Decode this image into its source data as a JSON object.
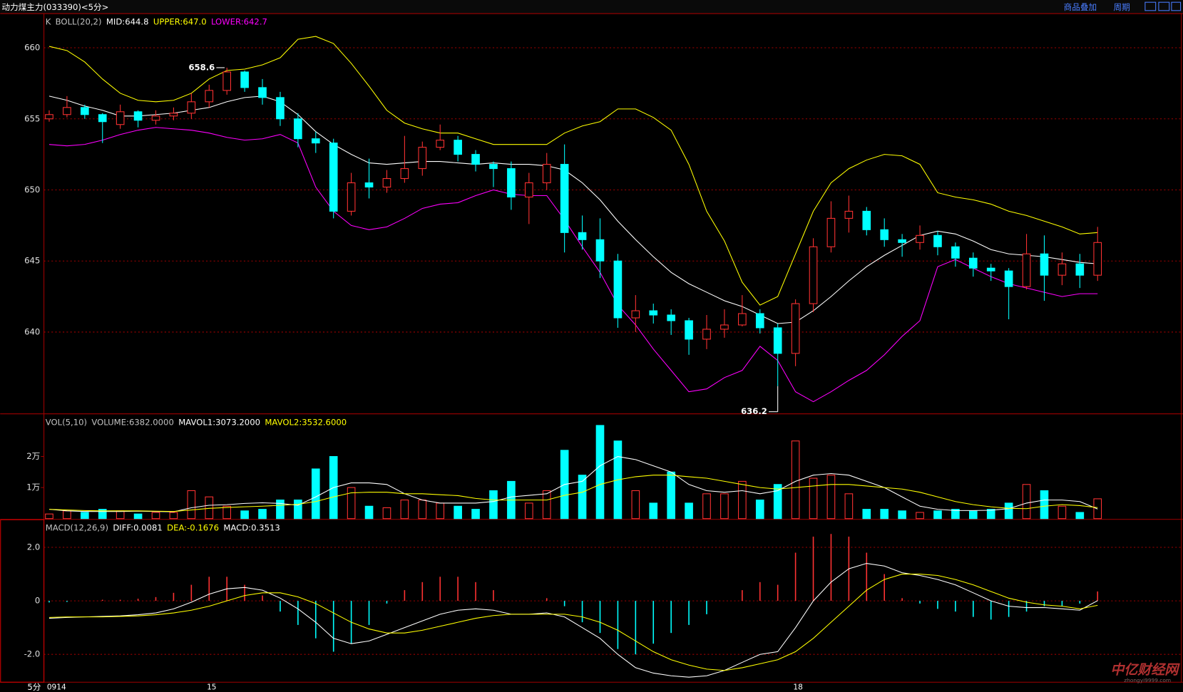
{
  "header": {
    "title": "动力煤主力(033390)<5分>",
    "buttons": [
      "商品叠加",
      "周期"
    ]
  },
  "period_label": "5分",
  "watermark": {
    "brand": "中亿财经网",
    "url": "zhongyi9999.com"
  },
  "chart_data": [
    {
      "type": "candlestick",
      "legend": [
        {
          "text": "K",
          "color": "#c0c0c0"
        },
        {
          "text": "BOLL(20,2)",
          "color": "#c0c0c0"
        },
        {
          "text": "MID:644.8",
          "color": "#ffffff"
        },
        {
          "text": "UPPER:647.0",
          "color": "#ffff00"
        },
        {
          "text": "LOWER:642.7",
          "color": "#ff00ff"
        }
      ],
      "ylim": [
        634.3,
        662.3
      ],
      "yticks": [
        640,
        645,
        650,
        655,
        660
      ],
      "grid": true,
      "up_color": "#ff3232",
      "down_color": "#00ffff",
      "ohlc": [
        [
          655.0,
          655.6,
          654.8,
          655.3
        ],
        [
          655.3,
          656.6,
          655.1,
          655.8
        ],
        [
          655.8,
          656.0,
          655.0,
          655.3
        ],
        [
          655.3,
          655.4,
          653.3,
          654.8
        ],
        [
          654.6,
          656.0,
          654.3,
          655.5
        ],
        [
          655.5,
          655.6,
          654.4,
          654.9
        ],
        [
          654.9,
          655.6,
          654.6,
          655.2
        ],
        [
          655.2,
          655.8,
          654.9,
          655.4
        ],
        [
          655.4,
          656.8,
          655.0,
          656.2
        ],
        [
          656.2,
          657.4,
          655.8,
          657.0
        ],
        [
          657.0,
          658.6,
          656.7,
          658.3
        ],
        [
          658.3,
          658.4,
          656.9,
          657.2
        ],
        [
          657.2,
          657.8,
          656.0,
          656.5
        ],
        [
          656.5,
          656.9,
          654.5,
          655.0
        ],
        [
          655.0,
          655.4,
          653.0,
          653.6
        ],
        [
          653.6,
          654.1,
          652.6,
          653.3
        ],
        [
          653.3,
          653.6,
          648.0,
          648.5
        ],
        [
          648.5,
          651.2,
          648.2,
          650.5
        ],
        [
          650.5,
          652.2,
          649.4,
          650.2
        ],
        [
          650.2,
          651.4,
          649.8,
          650.8
        ],
        [
          650.8,
          653.8,
          650.5,
          651.5
        ],
        [
          651.5,
          653.4,
          651.0,
          653.0
        ],
        [
          653.0,
          654.6,
          652.8,
          653.5
        ],
        [
          653.5,
          653.8,
          652.0,
          652.5
        ],
        [
          652.5,
          652.8,
          651.3,
          651.8
        ],
        [
          651.8,
          652.0,
          650.2,
          651.5
        ],
        [
          651.5,
          652.0,
          648.6,
          649.5
        ],
        [
          649.5,
          651.2,
          647.6,
          650.5
        ],
        [
          650.5,
          652.6,
          650.0,
          651.8
        ],
        [
          651.8,
          653.2,
          645.6,
          647.0
        ],
        [
          647.0,
          648.2,
          645.8,
          646.5
        ],
        [
          646.5,
          648.0,
          643.8,
          645.0
        ],
        [
          645.0,
          645.5,
          640.3,
          641.0
        ],
        [
          641.0,
          642.6,
          640.0,
          641.5
        ],
        [
          641.5,
          642.0,
          640.6,
          641.2
        ],
        [
          641.2,
          641.6,
          639.8,
          640.8
        ],
        [
          640.8,
          641.0,
          638.4,
          639.5
        ],
        [
          639.5,
          641.2,
          638.8,
          640.2
        ],
        [
          640.2,
          641.6,
          639.6,
          640.5
        ],
        [
          640.5,
          642.6,
          640.4,
          641.3
        ],
        [
          641.3,
          641.6,
          639.9,
          640.3
        ],
        [
          640.3,
          640.6,
          636.2,
          638.5
        ],
        [
          638.5,
          642.3,
          637.6,
          642.0
        ],
        [
          642.0,
          646.6,
          641.4,
          646.0
        ],
        [
          646.0,
          649.2,
          645.6,
          648.0
        ],
        [
          648.0,
          649.6,
          647.0,
          648.5
        ],
        [
          648.5,
          648.8,
          646.8,
          647.2
        ],
        [
          647.2,
          648.0,
          646.0,
          646.5
        ],
        [
          646.5,
          646.9,
          645.3,
          646.3
        ],
        [
          646.3,
          647.5,
          645.8,
          646.8
        ],
        [
          646.8,
          647.1,
          645.4,
          646.0
        ],
        [
          646.0,
          646.3,
          644.6,
          645.2
        ],
        [
          645.2,
          645.6,
          643.9,
          644.5
        ],
        [
          644.5,
          644.8,
          643.6,
          644.3
        ],
        [
          644.3,
          644.5,
          640.9,
          643.2
        ],
        [
          643.2,
          646.9,
          643.0,
          645.5
        ],
        [
          645.5,
          646.8,
          642.2,
          644.0
        ],
        [
          644.0,
          645.6,
          643.3,
          644.8
        ],
        [
          644.8,
          645.5,
          643.1,
          644.0
        ],
        [
          644.0,
          647.4,
          643.6,
          646.3
        ]
      ],
      "lines": [
        {
          "color": "#ffff00",
          "values": [
            660.1,
            659.8,
            659,
            657.8,
            656.8,
            656.3,
            656.2,
            656.3,
            656.8,
            657.8,
            658.4,
            658.5,
            658.8,
            659.3,
            660.6,
            660.8,
            660.3,
            658.9,
            657.3,
            655.6,
            654.7,
            654.3,
            654,
            654,
            653.6,
            653.2,
            653.2,
            653.2,
            653.2,
            654,
            654.5,
            654.8,
            655.7,
            655.7,
            655.1,
            654.2,
            651.8,
            648.5,
            646.4,
            643.5,
            641.9,
            642.5,
            645.5,
            648.5,
            650.5,
            651.5,
            652.1,
            652.5,
            652.4,
            651.8,
            649.8,
            649.5,
            649.3,
            649,
            648.5,
            648.2,
            647.8,
            647.4,
            646.9,
            647.0
          ]
        },
        {
          "color": "#ffffff",
          "values": [
            656.6,
            656.3,
            655.9,
            655.6,
            655.2,
            655.2,
            655.3,
            655.4,
            655.6,
            655.8,
            656.2,
            656.5,
            656.6,
            656.2,
            655.3,
            654.1,
            653.2,
            652.5,
            651.9,
            651.8,
            651.9,
            652.0,
            652.0,
            651.9,
            651.8,
            651.9,
            651.8,
            651.8,
            651.7,
            651.4,
            650.5,
            649.3,
            647.8,
            646.5,
            645.3,
            644.2,
            643.4,
            642.8,
            642.2,
            641.8,
            641.2,
            640.6,
            640.7,
            641.5,
            642.5,
            643.6,
            644.6,
            645.4,
            646.1,
            646.8,
            647.1,
            646.9,
            646.4,
            645.8,
            645.5,
            645.4,
            645.3,
            645.1,
            644.9,
            644.8
          ]
        },
        {
          "color": "#ff00ff",
          "values": [
            653.2,
            653.1,
            653.2,
            653.5,
            653.9,
            654.2,
            654.4,
            654.3,
            654.2,
            654.0,
            653.7,
            653.5,
            653.6,
            653.9,
            653.3,
            650.2,
            648.5,
            647.5,
            647.2,
            647.4,
            648,
            648.7,
            649,
            649.1,
            649.6,
            650.0,
            649.7,
            649.6,
            649.6,
            647.9,
            646,
            644.2,
            641.9,
            640.5,
            638.8,
            637.3,
            635.8,
            636,
            636.8,
            637.3,
            639,
            638,
            635.8,
            635.1,
            635.8,
            636.6,
            637.3,
            638.4,
            639.7,
            640.8,
            644.6,
            645.1,
            644.5,
            643.9,
            643.4,
            643.1,
            642.8,
            642.5,
            642.7,
            642.7
          ]
        }
      ],
      "annotations": [
        {
          "label": "658.6",
          "value": 658.6
        },
        {
          "label": "636.2",
          "value": 636.2
        }
      ]
    },
    {
      "type": "bar",
      "legend": [
        {
          "text": "VOL(5,10)",
          "color": "#c0c0c0"
        },
        {
          "text": "VOLUME:6382.0000",
          "color": "#c0c0c0"
        },
        {
          "text": "MAVOL1:3073.2000",
          "color": "#ffffff"
        },
        {
          "text": "MAVOL2:3532.6000",
          "color": "#ffff00"
        }
      ],
      "ylim": [
        0,
        33000
      ],
      "yticks": [
        {
          "value": 10000,
          "label": "1万"
        },
        {
          "value": 20000,
          "label": "2万"
        }
      ],
      "grid": false,
      "values": [
        1500,
        2500,
        2000,
        3000,
        2500,
        1500,
        2000,
        2000,
        9000,
        7000,
        4000,
        2500,
        3000,
        6000,
        6000,
        16000,
        20000,
        10000,
        4000,
        3500,
        6000,
        6000,
        5000,
        4000,
        3000,
        9000,
        12000,
        5000,
        9000,
        22000,
        14000,
        30000,
        25000,
        9000,
        5000,
        15000,
        5000,
        8000,
        8000,
        12000,
        6000,
        11000,
        25000,
        13000,
        14000,
        8000,
        3000,
        3000,
        2500,
        2000,
        2500,
        3000,
        2500,
        3000,
        5000,
        11000,
        9000,
        4000,
        2000,
        6382
      ],
      "lines": [
        {
          "color": "#ffffff",
          "values": [
            3000,
            2500,
            2300,
            2300,
            2300,
            2400,
            2300,
            2200,
            3500,
            4300,
            4500,
            4900,
            5100,
            4900,
            4300,
            7000,
            10000,
            11500,
            11500,
            11000,
            8000,
            6000,
            5000,
            5000,
            5000,
            5500,
            7000,
            7500,
            8000,
            11000,
            12000,
            17000,
            20000,
            19000,
            17000,
            15000,
            11000,
            9000,
            8500,
            9000,
            8000,
            9000,
            12000,
            14000,
            14500,
            14000,
            12000,
            10000,
            7000,
            4000,
            3000,
            2600,
            2600,
            2700,
            3200,
            5000,
            6000,
            6000,
            5500,
            3073.2
          ]
        },
        {
          "color": "#ffff00",
          "values": [
            3000,
            2800,
            2600,
            2500,
            2500,
            2500,
            2400,
            2300,
            2800,
            3300,
            3600,
            3800,
            4000,
            4300,
            4600,
            5500,
            7000,
            8300,
            8500,
            8500,
            8000,
            8000,
            7700,
            7400,
            6500,
            6000,
            6000,
            6000,
            6000,
            7500,
            8500,
            11000,
            12500,
            13500,
            14000,
            14000,
            13500,
            13000,
            12000,
            11000,
            10000,
            9500,
            10000,
            10500,
            11000,
            11000,
            10500,
            10000,
            9500,
            8500,
            7000,
            5500,
            4500,
            3800,
            3300,
            3200,
            4000,
            4500,
            4200,
            3532.6
          ]
        }
      ]
    },
    {
      "type": "macd",
      "legend": [
        {
          "text": "MACD(12,26,9)",
          "color": "#c0c0c0"
        },
        {
          "text": "DIFF:0.0081",
          "color": "#ffffff"
        },
        {
          "text": "DEA:-0.1676",
          "color": "#ffff00"
        },
        {
          "text": "MACD:0.3513",
          "color": "#ffffff"
        }
      ],
      "ylim": [
        -3.04,
        2.96
      ],
      "yticks": [
        {
          "value": 2,
          "label": "2.0"
        },
        0,
        {
          "value": -2,
          "label": "-2.0"
        }
      ],
      "grid": true,
      "categories": [
        "0914",
        null,
        null,
        null,
        null,
        null,
        null,
        null,
        null,
        "15",
        null,
        null,
        null,
        null,
        null,
        null,
        null,
        null,
        null,
        null,
        null,
        null,
        null,
        null,
        null,
        null,
        null,
        null,
        null,
        null,
        null,
        null,
        null,
        null,
        null,
        null,
        null,
        null,
        null,
        null,
        null,
        null,
        "18",
        null,
        null,
        null,
        null,
        null,
        null,
        null,
        null,
        null,
        null,
        null,
        null,
        null,
        null,
        null,
        null,
        null
      ],
      "values": [
        -0.06,
        -0.04,
        0,
        0.04,
        0.04,
        0.08,
        0.14,
        0.3,
        0.6,
        0.9,
        0.9,
        0.6,
        0.2,
        -0.4,
        -0.9,
        -1.4,
        -1.9,
        -1.6,
        -0.9,
        -0.1,
        0.4,
        0.7,
        0.9,
        0.9,
        0.7,
        0.4,
        0,
        0,
        0.1,
        -0.2,
        -0.8,
        -1.2,
        -1.8,
        -2.0,
        -1.6,
        -1.2,
        -0.9,
        -0.5,
        0,
        0.4,
        0.7,
        0.6,
        1.8,
        2.4,
        2.5,
        2.4,
        1.8,
        1.0,
        0.1,
        -0.1,
        -0.3,
        -0.4,
        -0.6,
        -0.7,
        -0.6,
        -0.4,
        -0.2,
        -0.2,
        -0.1,
        0.3513
      ],
      "lines": [
        {
          "color": "#ffffff",
          "values": [
            -0.65,
            -0.62,
            -0.6,
            -0.58,
            -0.56,
            -0.52,
            -0.45,
            -0.3,
            -0.05,
            0.25,
            0.45,
            0.5,
            0.4,
            0.1,
            -0.3,
            -0.8,
            -1.4,
            -1.6,
            -1.5,
            -1.25,
            -1.0,
            -0.75,
            -0.5,
            -0.35,
            -0.3,
            -0.35,
            -0.5,
            -0.5,
            -0.45,
            -0.6,
            -1.0,
            -1.4,
            -2.0,
            -2.5,
            -2.7,
            -2.8,
            -2.85,
            -2.8,
            -2.6,
            -2.3,
            -2.0,
            -1.9,
            -1.0,
            0.0,
            0.7,
            1.2,
            1.4,
            1.3,
            1.05,
            0.95,
            0.8,
            0.6,
            0.3,
            0.0,
            -0.2,
            -0.25,
            -0.25,
            -0.3,
            -0.35,
            0.0081
          ]
        },
        {
          "color": "#ffff00",
          "values": [
            -0.62,
            -0.6,
            -0.6,
            -0.6,
            -0.58,
            -0.56,
            -0.52,
            -0.45,
            -0.35,
            -0.2,
            0.0,
            0.2,
            0.3,
            0.3,
            0.15,
            -0.1,
            -0.45,
            -0.8,
            -1.05,
            -1.2,
            -1.2,
            -1.1,
            -0.95,
            -0.8,
            -0.65,
            -0.55,
            -0.5,
            -0.5,
            -0.5,
            -0.5,
            -0.6,
            -0.8,
            -1.1,
            -1.5,
            -1.9,
            -2.2,
            -2.4,
            -2.55,
            -2.6,
            -2.5,
            -2.35,
            -2.2,
            -1.9,
            -1.4,
            -0.8,
            -0.2,
            0.4,
            0.8,
            1.0,
            1.0,
            0.95,
            0.8,
            0.6,
            0.35,
            0.1,
            -0.05,
            -0.15,
            -0.2,
            -0.3,
            -0.1676
          ]
        }
      ]
    }
  ]
}
